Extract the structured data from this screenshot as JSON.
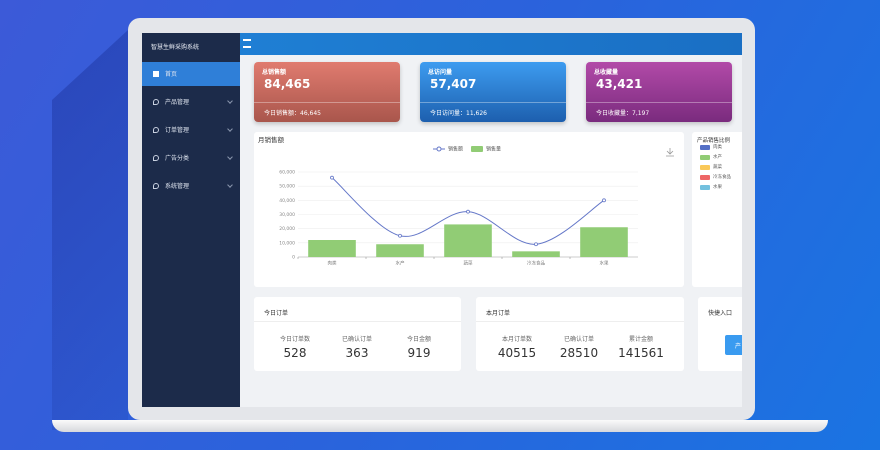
{
  "sidebar": {
    "title": "智慧生鲜采购系统",
    "menu": [
      "首页",
      "产品管理",
      "订单管理",
      "广告分类",
      "系统管理"
    ]
  },
  "stat_cards": [
    {
      "title": "总销售额",
      "value": "84,465",
      "footer": "今日销售额：46,645"
    },
    {
      "title": "总访问量",
      "value": "57,407",
      "footer": "今日访问量：11,626"
    },
    {
      "title": "总收藏量",
      "value": "43,421",
      "footer": "今日收藏量：7,197"
    }
  ],
  "chart_data": {
    "type": "combo",
    "title": "月销售额",
    "categories": [
      "肉类",
      "水产",
      "蔬菜",
      "冷冻食品",
      "水果"
    ],
    "series": [
      {
        "name": "销售额",
        "type": "line",
        "color": "#6477c8",
        "values": [
          56000,
          15000,
          32000,
          9000,
          40000
        ]
      },
      {
        "name": "销售量",
        "type": "bar",
        "color": "#91cc75",
        "values": [
          12000,
          9000,
          23000,
          4000,
          21000
        ]
      }
    ],
    "ylim": [
      0,
      60000
    ],
    "yticks": [
      0,
      {
        "value": 10000,
        "label": "10,000"
      },
      {
        "value": 20000,
        "label": "20,000"
      },
      {
        "value": 30000,
        "label": "30,000"
      },
      {
        "value": 40000,
        "label": "40,000"
      },
      {
        "value": 50000,
        "label": "50,000"
      },
      {
        "value": 60000,
        "label": "60,000"
      }
    ],
    "grid": true
  },
  "pie_panel": {
    "title": "产品销售比例",
    "legend": [
      {
        "name": "肉类",
        "color": "#5470c6"
      },
      {
        "name": "水产",
        "color": "#91cc75"
      },
      {
        "name": "蔬菜",
        "color": "#fac858"
      },
      {
        "name": "冷冻食品",
        "color": "#ee6666"
      },
      {
        "name": "水果",
        "color": "#73c0de"
      }
    ]
  },
  "order_panels": [
    {
      "title": "今日订单",
      "items": [
        {
          "label": "今日订单数",
          "value": 528
        },
        {
          "label": "已确认订单",
          "value": 363
        },
        {
          "label": "今日金额",
          "value": 919
        }
      ]
    },
    {
      "title": "本月订单",
      "items": [
        {
          "label": "本月订单数",
          "value": 40515
        },
        {
          "label": "已确认订单",
          "value": 28510
        },
        {
          "label": "累计金额",
          "value": 141561
        }
      ]
    }
  ],
  "quick_panel": {
    "title": "快捷入口",
    "button": "产"
  }
}
